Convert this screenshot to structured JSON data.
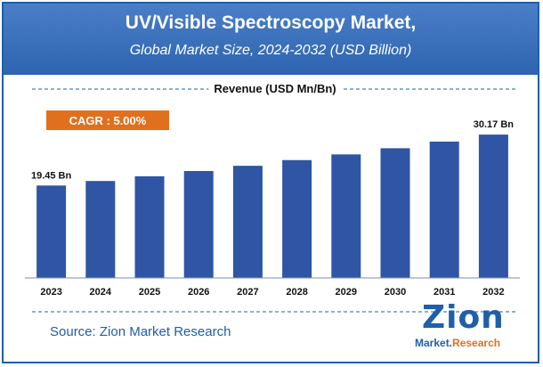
{
  "header": {
    "title": "UV/Visible Spectroscopy Market,",
    "subtitle": "Global Market Size, 2024-2032 (USD Billion)"
  },
  "chart_data": {
    "type": "bar",
    "title": "Revenue (USD Mn/Bn)",
    "categories": [
      "2023",
      "2024",
      "2025",
      "2026",
      "2027",
      "2028",
      "2029",
      "2030",
      "2031",
      "2032"
    ],
    "series": [
      {
        "values": [
          19.45,
          20.4,
          21.4,
          22.5,
          23.6,
          24.8,
          26.0,
          27.3,
          28.7,
          30.17
        ]
      }
    ],
    "data_labels": [
      "19.45 Bn",
      "",
      "",
      "",
      "",
      "",
      "",
      "",
      "",
      "30.17 Bn"
    ],
    "ylim": [
      0,
      33
    ],
    "grid": false,
    "legend": "none",
    "bar_color": "#2f55a4",
    "annotation": "CAGR : 5.00%",
    "annotation_color": "#e0701e",
    "line_color": "#1f5fa8"
  },
  "footer": {
    "source": "Source: Zion Market Research",
    "logo_main": "Zion",
    "logo_sub_1": "Market.",
    "logo_sub_2": "Research"
  }
}
